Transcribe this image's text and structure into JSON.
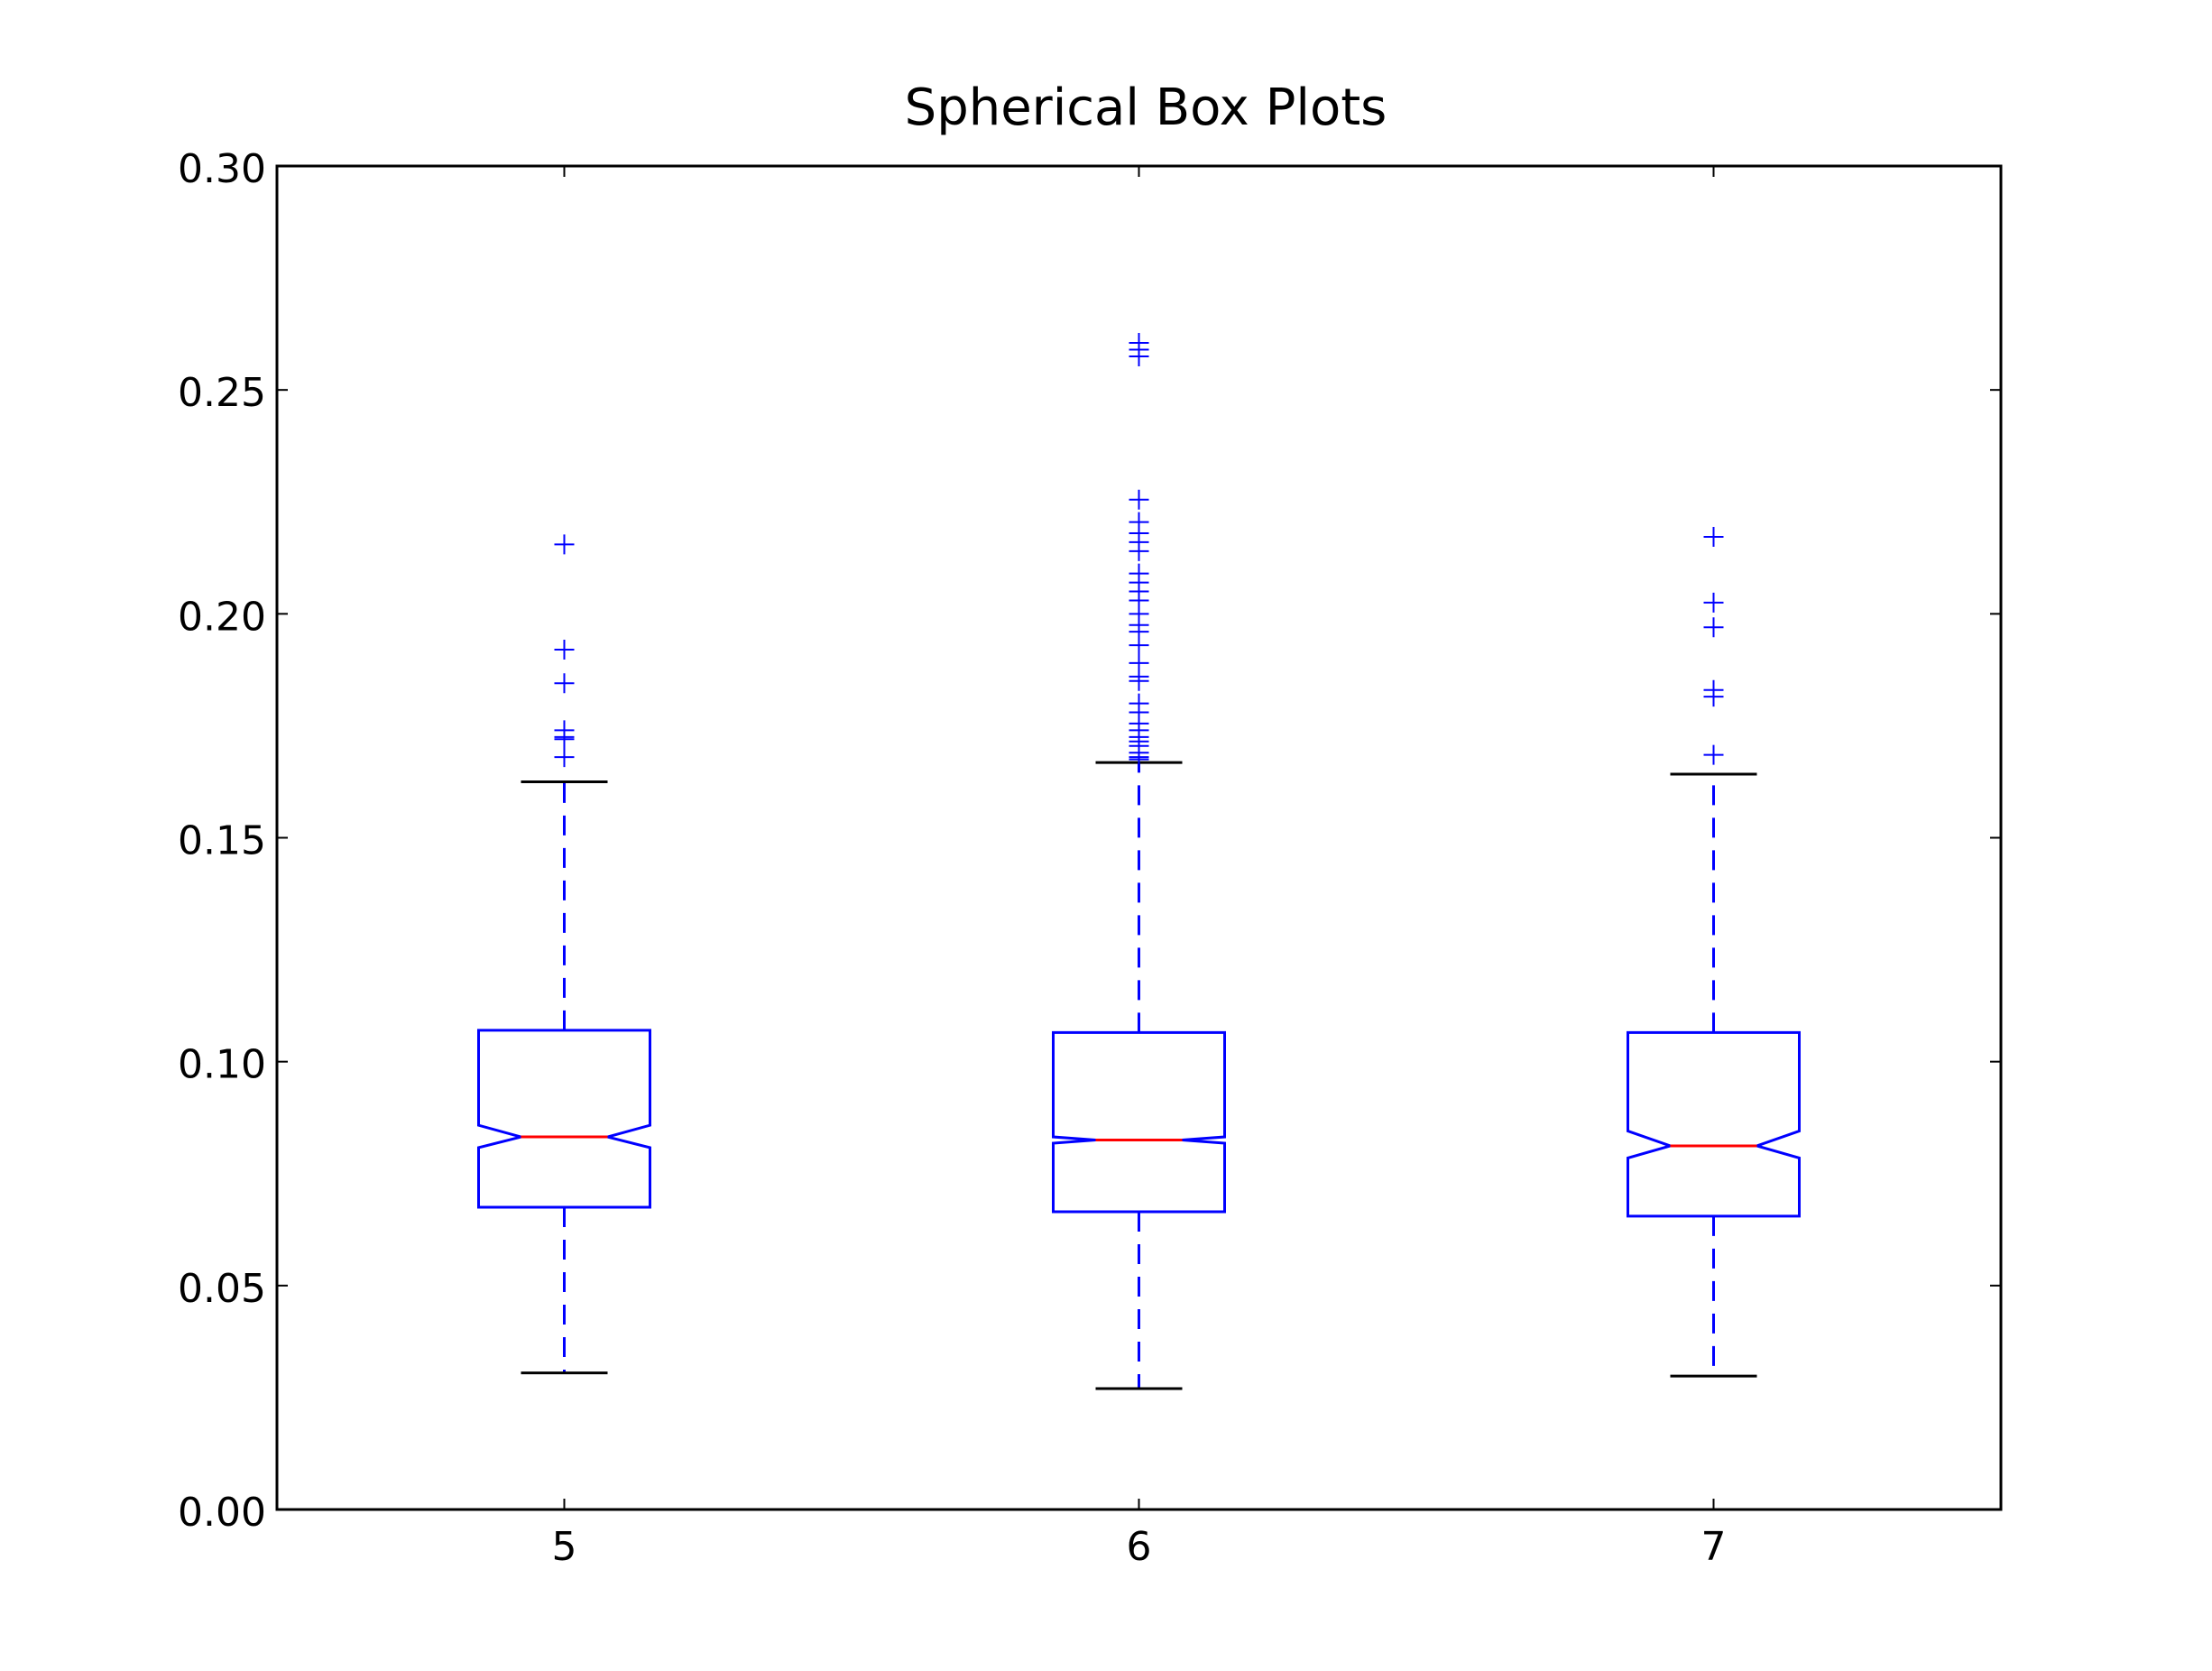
{
  "chart_data": {
    "type": "box",
    "title": "Spherical Box Plots",
    "xlabel": "",
    "ylabel": "",
    "categories": [
      "5",
      "6",
      "7"
    ],
    "ylim": [
      0.0,
      0.3
    ],
    "yticks": [
      "0.00",
      "0.05",
      "0.10",
      "0.15",
      "0.20",
      "0.25",
      "0.30"
    ],
    "notched": true,
    "grid": false,
    "boxes": [
      {
        "category": "5",
        "whisker_low": 0.0305,
        "q1": 0.0675,
        "median": 0.0832,
        "q3": 0.107,
        "notch_low": 0.0808,
        "notch_high": 0.0858,
        "whisker_high": 0.1625,
        "outliers": [
          0.168,
          0.172,
          0.1725,
          0.174,
          0.1845,
          0.192,
          0.2155
        ]
      },
      {
        "category": "6",
        "whisker_low": 0.027,
        "q1": 0.0665,
        "median": 0.0825,
        "q3": 0.1065,
        "notch_low": 0.0818,
        "notch_high": 0.0832,
        "whisker_high": 0.1668,
        "outliers": [
          0.1675,
          0.168,
          0.169,
          0.1705,
          0.1715,
          0.1725,
          0.174,
          0.1755,
          0.178,
          0.18,
          0.185,
          0.186,
          0.189,
          0.193,
          0.196,
          0.1975,
          0.2,
          0.203,
          0.205,
          0.207,
          0.209,
          0.214,
          0.216,
          0.218,
          0.2205,
          0.2255,
          0.2575,
          0.259,
          0.2605
        ]
      },
      {
        "category": "7",
        "whisker_low": 0.0298,
        "q1": 0.0655,
        "median": 0.0812,
        "q3": 0.1065,
        "notch_low": 0.0785,
        "notch_high": 0.0845,
        "whisker_high": 0.1642,
        "outliers": [
          0.1685,
          0.1815,
          0.183,
          0.197,
          0.2025,
          0.2172
        ]
      }
    ],
    "colors": {
      "box": "#0000ff",
      "median": "#ff0000",
      "whisker": "#0000ff",
      "cap": "#000000",
      "outlier": "#0000ff",
      "axes": "#000000"
    }
  }
}
